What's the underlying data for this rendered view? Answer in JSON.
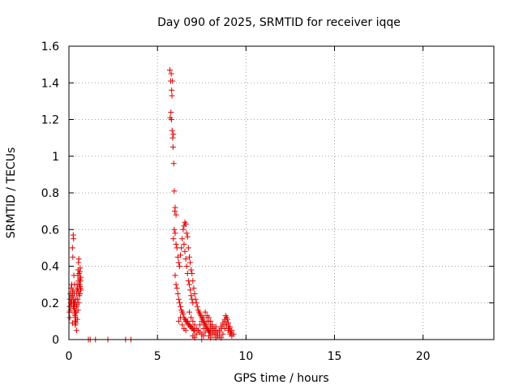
{
  "chart_data": {
    "type": "scatter",
    "title": "Day 090 of 2025, SRMTID for receiver iqqe",
    "xlabel": "GPS time / hours",
    "ylabel": "SRMTID / TECUs",
    "xlim": [
      0,
      24
    ],
    "ylim": [
      0,
      1.6
    ],
    "xticks": [
      0,
      5,
      10,
      15,
      20
    ],
    "yticks": [
      0,
      0.2,
      0.4,
      0.6,
      0.8,
      1,
      1.2,
      1.4,
      1.6
    ],
    "ytick_labels": [
      "0",
      "0.2",
      "0.4",
      "0.6",
      "0.8",
      "1",
      "1.2",
      "1.4",
      "1.6"
    ],
    "grid": true,
    "marker": "+",
    "color": "#e00000",
    "series": [
      {
        "x": [
          0.02,
          0.04,
          0.06,
          0.08,
          0.1,
          0.12,
          0.14,
          0.16,
          0.18,
          0.2,
          0.22,
          0.24,
          0.26,
          0.28,
          0.3,
          0.32,
          0.34,
          0.36,
          0.38,
          0.4,
          0.42,
          0.44,
          0.46,
          0.48,
          0.5,
          0.52,
          0.54,
          0.56,
          0.58,
          0.6,
          0.62,
          0.64,
          0.66,
          0.68,
          0.05,
          0.09,
          0.13,
          0.17,
          0.21,
          0.25,
          0.29,
          0.33,
          0.37,
          0.41,
          0.45,
          0.49,
          0.53,
          0.57,
          0.61,
          0.65,
          0.15,
          0.19,
          0.23,
          0.27,
          0.31,
          0.35,
          0.39,
          0.43,
          0.47,
          0.51,
          0.55,
          0.59,
          0.63,
          0.67,
          0.3,
          0.32,
          0.34,
          0.36,
          0.62,
          0.64,
          0.55,
          0.45,
          0.25,
          0.2,
          1.1,
          1.2,
          1.5,
          2.2,
          3.2,
          3.5,
          5.7,
          5.75,
          5.78,
          5.8,
          5.82,
          5.85,
          5.72,
          5.76,
          5.79,
          5.83,
          5.86,
          5.88,
          5.9,
          5.92,
          5.95,
          5.98,
          6.0,
          6.05,
          5.9,
          5.95,
          6.0,
          6.05,
          6.1,
          6.15,
          6.2,
          6.25,
          6.3,
          6.35,
          6.4,
          6.45,
          6.5,
          6.55,
          6.6,
          6.65,
          6.7,
          6.75,
          6.8,
          6.85,
          6.9,
          6.95,
          7.0,
          7.05,
          7.1,
          7.15,
          7.2,
          7.25,
          7.3,
          7.35,
          7.4,
          7.45,
          7.5,
          7.55,
          7.6,
          7.65,
          7.7,
          7.75,
          7.8,
          7.85,
          7.9,
          7.95,
          8.0,
          6.5,
          6.55,
          6.6,
          6.65,
          6.7,
          6.75,
          6.8,
          6.85,
          6.9,
          6.95,
          7.0,
          6.0,
          6.05,
          6.1,
          6.15,
          6.2,
          6.25,
          6.3,
          6.35,
          6.4,
          6.45,
          6.5,
          6.55,
          6.6,
          6.65,
          6.7,
          6.75,
          6.8,
          6.85,
          6.9,
          6.95,
          7.0,
          7.05,
          7.1,
          6.2,
          6.3,
          6.4,
          6.5,
          6.6,
          6.7,
          6.8,
          6.9,
          7.0,
          7.1,
          7.2,
          7.3,
          7.4,
          7.5,
          7.6,
          7.7,
          7.8,
          7.9,
          8.0,
          8.1,
          8.2,
          8.3,
          7.0,
          7.1,
          7.2,
          7.3,
          7.4,
          7.5,
          7.6,
          7.7,
          7.8,
          7.9,
          8.0,
          8.1,
          8.2,
          8.3,
          8.4,
          8.5,
          8.6,
          8.7,
          8.8,
          8.9,
          9.0,
          9.1,
          9.2,
          7.5,
          7.6,
          7.7,
          7.8,
          7.9,
          8.0,
          8.1,
          8.2,
          8.3,
          8.4,
          8.5,
          8.6,
          8.7,
          8.8,
          8.9,
          9.0,
          9.1,
          9.2,
          8.0,
          8.1,
          8.2,
          8.3,
          8.4,
          8.5,
          8.6,
          8.7,
          8.8,
          8.9,
          9.0,
          9.1,
          9.2,
          9.3,
          8.95,
          9.05,
          9.15,
          8.85
        ],
        "y": [
          0.15,
          0.18,
          0.22,
          0.25,
          0.2,
          0.28,
          0.19,
          0.3,
          0.24,
          0.5,
          0.45,
          0.57,
          0.55,
          0.35,
          0.2,
          0.15,
          0.1,
          0.08,
          0.12,
          0.22,
          0.18,
          0.25,
          0.3,
          0.28,
          0.35,
          0.38,
          0.42,
          0.44,
          0.36,
          0.3,
          0.25,
          0.28,
          0.32,
          0.27,
          0.12,
          0.16,
          0.2,
          0.23,
          0.26,
          0.2,
          0.17,
          0.14,
          0.1,
          0.15,
          0.19,
          0.22,
          0.26,
          0.3,
          0.33,
          0.28,
          0.21,
          0.24,
          0.27,
          0.22,
          0.18,
          0.13,
          0.09,
          0.05,
          0.11,
          0.16,
          0.2,
          0.24,
          0.29,
          0.34,
          0.25,
          0.3,
          0.2,
          0.15,
          0.37,
          0.39,
          0.32,
          0.27,
          0.18,
          0.09,
          0,
          0,
          0,
          0,
          0,
          0,
          1.47,
          1.41,
          1.45,
          1.36,
          1.33,
          1.41,
          1.21,
          1.24,
          1.2,
          1.14,
          1.1,
          1.05,
          1.12,
          0.96,
          0.81,
          0.7,
          0.72,
          0.68,
          0.55,
          0.6,
          0.58,
          0.52,
          0.5,
          0.45,
          0.42,
          0.4,
          0.46,
          0.5,
          0.55,
          0.6,
          0.62,
          0.64,
          0.63,
          0.58,
          0.56,
          0.5,
          0.45,
          0.42,
          0.38,
          0.36,
          0.32,
          0.28,
          0.25,
          0.22,
          0.2,
          0.18,
          0.16,
          0.15,
          0.14,
          0.13,
          0.12,
          0.11,
          0.1,
          0.09,
          0.08,
          0.07,
          0.06,
          0.05,
          0.05,
          0.04,
          0.04,
          0.52,
          0.48,
          0.44,
          0.4,
          0.36,
          0.32,
          0.3,
          0.27,
          0.24,
          0.22,
          0.2,
          0.35,
          0.3,
          0.28,
          0.25,
          0.22,
          0.2,
          0.18,
          0.16,
          0.15,
          0.14,
          0.12,
          0.11,
          0.1,
          0.1,
          0.09,
          0.08,
          0.08,
          0.07,
          0.07,
          0.06,
          0.06,
          0.05,
          0.05,
          0.1,
          0.12,
          0.08,
          0.06,
          0.05,
          0.1,
          0.15,
          0.12,
          0.1,
          0.08,
          0.06,
          0.05,
          0.04,
          0.03,
          0.06,
          0.08,
          0.1,
          0.12,
          0.1,
          0.08,
          0.06,
          0.05,
          0.02,
          0.01,
          0.03,
          0.05,
          0.08,
          0.1,
          0.12,
          0.15,
          0.13,
          0.1,
          0.08,
          0.06,
          0.04,
          0.03,
          0.02,
          0.05,
          0.07,
          0.09,
          0.11,
          0.08,
          0.06,
          0.04,
          0.03,
          0.0,
          0.02,
          0.04,
          0.06,
          0.02,
          0.01,
          0.03,
          0.05,
          0.07,
          0.04,
          0.02,
          0.01,
          0.03,
          0.06,
          0.08,
          0.05,
          0.03,
          0.02,
          0.07,
          0.05,
          0.03,
          0.01,
          0.02,
          0.04,
          0.06,
          0.08,
          0.1,
          0.12,
          0.09,
          0.07,
          0.05,
          0.03,
          0.11,
          0.06,
          0.04,
          0.13
        ]
      }
    ]
  }
}
